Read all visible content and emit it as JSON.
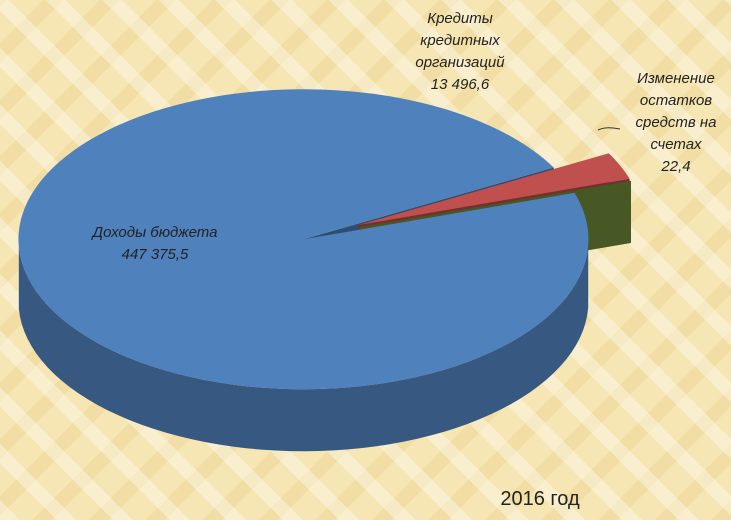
{
  "chart_data": {
    "type": "pie",
    "title": "2016 год",
    "categories": [
      "Доходы бюджета",
      "Кредиты кредитных организаций",
      "Изменение остатков средств на счетах"
    ],
    "values": [
      447375.5,
      13496.6,
      22.4
    ],
    "value_labels": [
      "447 375,5",
      "13 496,6",
      "22,4"
    ],
    "colors": [
      "#4f81bd",
      "#c0504d",
      "#77933c"
    ]
  }
}
